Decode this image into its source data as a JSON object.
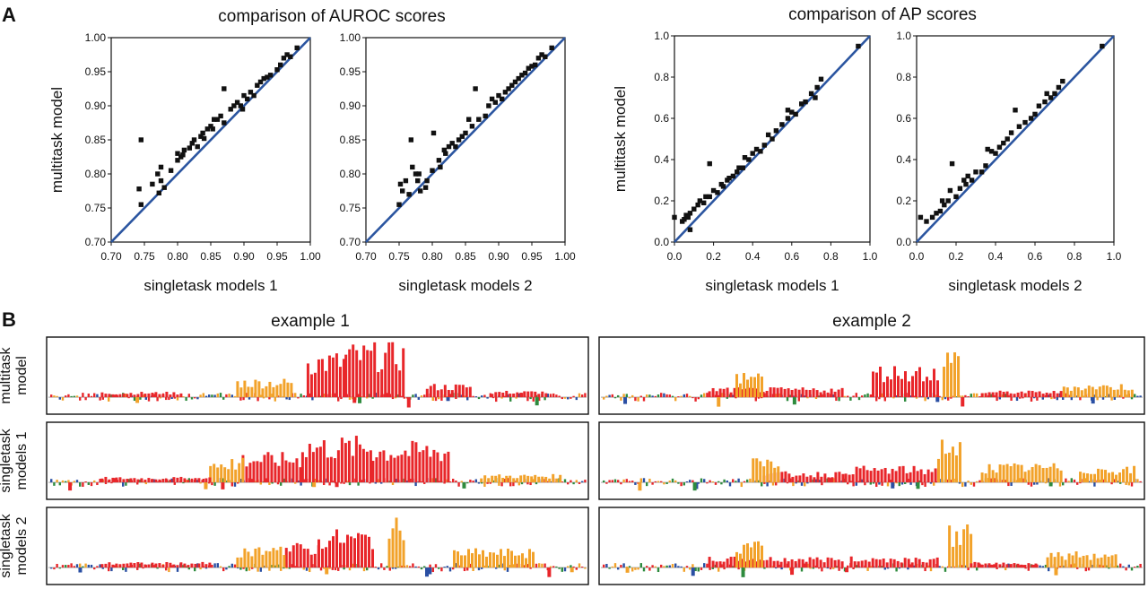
{
  "panel_labels": {
    "a": "A",
    "b": "B"
  },
  "group_titles": {
    "auroc": "comparison of AUROC scores",
    "ap": "comparison of AP scores"
  },
  "colors": {
    "diagonal": "#2b55a0",
    "points": "#111111",
    "logo_A": "#e8262a",
    "logo_C": "#2a4fa3",
    "logo_G": "#f2a22a",
    "logo_T": "#2e8b3e"
  },
  "chart_data": [
    {
      "type": "scatter",
      "title": "",
      "xlabel": "singletask models 1",
      "ylabel": "multitask model",
      "xlim": [
        0.7,
        1.0
      ],
      "ylim": [
        0.7,
        1.0
      ],
      "ticks": [
        "0.70",
        "0.75",
        "0.80",
        "0.85",
        "0.90",
        "0.95",
        "1.00"
      ],
      "diagonal": true,
      "points": [
        [
          0.745,
          0.85
        ],
        [
          0.742,
          0.778
        ],
        [
          0.745,
          0.755
        ],
        [
          0.762,
          0.785
        ],
        [
          0.775,
          0.81
        ],
        [
          0.77,
          0.8
        ],
        [
          0.775,
          0.79
        ],
        [
          0.78,
          0.78
        ],
        [
          0.772,
          0.772
        ],
        [
          0.79,
          0.805
        ],
        [
          0.8,
          0.82
        ],
        [
          0.805,
          0.825
        ],
        [
          0.8,
          0.83
        ],
        [
          0.81,
          0.835
        ],
        [
          0.808,
          0.828
        ],
        [
          0.818,
          0.838
        ],
        [
          0.822,
          0.845
        ],
        [
          0.825,
          0.85
        ],
        [
          0.83,
          0.84
        ],
        [
          0.835,
          0.855
        ],
        [
          0.838,
          0.86
        ],
        [
          0.84,
          0.852
        ],
        [
          0.845,
          0.866
        ],
        [
          0.85,
          0.87
        ],
        [
          0.853,
          0.866
        ],
        [
          0.855,
          0.88
        ],
        [
          0.86,
          0.88
        ],
        [
          0.865,
          0.885
        ],
        [
          0.87,
          0.925
        ],
        [
          0.87,
          0.875
        ],
        [
          0.88,
          0.895
        ],
        [
          0.885,
          0.9
        ],
        [
          0.89,
          0.905
        ],
        [
          0.895,
          0.9
        ],
        [
          0.898,
          0.895
        ],
        [
          0.9,
          0.915
        ],
        [
          0.905,
          0.91
        ],
        [
          0.91,
          0.92
        ],
        [
          0.915,
          0.915
        ],
        [
          0.92,
          0.93
        ],
        [
          0.925,
          0.935
        ],
        [
          0.93,
          0.94
        ],
        [
          0.935,
          0.942
        ],
        [
          0.94,
          0.945
        ],
        [
          0.95,
          0.953
        ],
        [
          0.955,
          0.96
        ],
        [
          0.96,
          0.97
        ],
        [
          0.965,
          0.975
        ],
        [
          0.97,
          0.972
        ],
        [
          0.98,
          0.985
        ]
      ]
    },
    {
      "type": "scatter",
      "title": "",
      "xlabel": "singletask models 2",
      "ylabel": "",
      "xlim": [
        0.7,
        1.0
      ],
      "ylim": [
        0.7,
        1.0
      ],
      "ticks": [
        "0.70",
        "0.75",
        "0.80",
        "0.85",
        "0.90",
        "0.95",
        "1.00"
      ],
      "diagonal": true,
      "points": [
        [
          0.75,
          0.755
        ],
        [
          0.752,
          0.785
        ],
        [
          0.755,
          0.775
        ],
        [
          0.76,
          0.79
        ],
        [
          0.765,
          0.77
        ],
        [
          0.768,
          0.85
        ],
        [
          0.77,
          0.81
        ],
        [
          0.775,
          0.8
        ],
        [
          0.778,
          0.79
        ],
        [
          0.78,
          0.8
        ],
        [
          0.782,
          0.775
        ],
        [
          0.79,
          0.78
        ],
        [
          0.792,
          0.79
        ],
        [
          0.8,
          0.805
        ],
        [
          0.802,
          0.86
        ],
        [
          0.81,
          0.82
        ],
        [
          0.812,
          0.81
        ],
        [
          0.818,
          0.835
        ],
        [
          0.82,
          0.83
        ],
        [
          0.825,
          0.84
        ],
        [
          0.83,
          0.845
        ],
        [
          0.835,
          0.84
        ],
        [
          0.84,
          0.85
        ],
        [
          0.845,
          0.855
        ],
        [
          0.85,
          0.86
        ],
        [
          0.855,
          0.88
        ],
        [
          0.86,
          0.87
        ],
        [
          0.865,
          0.925
        ],
        [
          0.87,
          0.88
        ],
        [
          0.88,
          0.885
        ],
        [
          0.885,
          0.9
        ],
        [
          0.89,
          0.91
        ],
        [
          0.895,
          0.905
        ],
        [
          0.9,
          0.915
        ],
        [
          0.905,
          0.91
        ],
        [
          0.91,
          0.92
        ],
        [
          0.915,
          0.925
        ],
        [
          0.92,
          0.93
        ],
        [
          0.925,
          0.935
        ],
        [
          0.93,
          0.94
        ],
        [
          0.935,
          0.945
        ],
        [
          0.94,
          0.948
        ],
        [
          0.945,
          0.955
        ],
        [
          0.95,
          0.958
        ],
        [
          0.955,
          0.96
        ],
        [
          0.96,
          0.97
        ],
        [
          0.965,
          0.975
        ],
        [
          0.97,
          0.972
        ],
        [
          0.98,
          0.985
        ]
      ]
    },
    {
      "type": "scatter",
      "title": "",
      "xlabel": "singletask models 1",
      "ylabel": "multitask model",
      "xlim": [
        0.0,
        1.0
      ],
      "ylim": [
        0.0,
        1.0
      ],
      "ticks": [
        "0.0",
        "0.2",
        "0.4",
        "0.6",
        "0.8",
        "1.0"
      ],
      "diagonal": true,
      "points": [
        [
          0.0,
          0.12
        ],
        [
          0.04,
          0.1
        ],
        [
          0.05,
          0.11
        ],
        [
          0.06,
          0.13
        ],
        [
          0.07,
          0.12
        ],
        [
          0.08,
          0.14
        ],
        [
          0.08,
          0.06
        ],
        [
          0.1,
          0.16
        ],
        [
          0.12,
          0.18
        ],
        [
          0.13,
          0.2
        ],
        [
          0.15,
          0.19
        ],
        [
          0.16,
          0.22
        ],
        [
          0.18,
          0.22
        ],
        [
          0.18,
          0.38
        ],
        [
          0.2,
          0.25
        ],
        [
          0.22,
          0.24
        ],
        [
          0.24,
          0.28
        ],
        [
          0.25,
          0.27
        ],
        [
          0.27,
          0.3
        ],
        [
          0.28,
          0.31
        ],
        [
          0.3,
          0.32
        ],
        [
          0.32,
          0.34
        ],
        [
          0.33,
          0.36
        ],
        [
          0.35,
          0.36
        ],
        [
          0.36,
          0.41
        ],
        [
          0.38,
          0.4
        ],
        [
          0.4,
          0.43
        ],
        [
          0.42,
          0.45
        ],
        [
          0.44,
          0.44
        ],
        [
          0.46,
          0.47
        ],
        [
          0.48,
          0.52
        ],
        [
          0.5,
          0.5
        ],
        [
          0.52,
          0.54
        ],
        [
          0.55,
          0.57
        ],
        [
          0.58,
          0.6
        ],
        [
          0.58,
          0.64
        ],
        [
          0.6,
          0.63
        ],
        [
          0.62,
          0.62
        ],
        [
          0.65,
          0.67
        ],
        [
          0.67,
          0.68
        ],
        [
          0.7,
          0.72
        ],
        [
          0.72,
          0.7
        ],
        [
          0.73,
          0.75
        ],
        [
          0.75,
          0.79
        ],
        [
          0.94,
          0.95
        ]
      ]
    },
    {
      "type": "scatter",
      "title": "",
      "xlabel": "singletask models 2",
      "ylabel": "",
      "xlim": [
        0.0,
        1.0
      ],
      "ylim": [
        0.0,
        1.0
      ],
      "ticks": [
        "0.0",
        "0.2",
        "0.4",
        "0.6",
        "0.8",
        "1.0"
      ],
      "diagonal": true,
      "points": [
        [
          0.02,
          0.12
        ],
        [
          0.05,
          0.1
        ],
        [
          0.08,
          0.12
        ],
        [
          0.1,
          0.14
        ],
        [
          0.12,
          0.15
        ],
        [
          0.13,
          0.2
        ],
        [
          0.14,
          0.18
        ],
        [
          0.16,
          0.2
        ],
        [
          0.17,
          0.25
        ],
        [
          0.18,
          0.38
        ],
        [
          0.2,
          0.22
        ],
        [
          0.22,
          0.26
        ],
        [
          0.24,
          0.3
        ],
        [
          0.25,
          0.28
        ],
        [
          0.26,
          0.32
        ],
        [
          0.28,
          0.3
        ],
        [
          0.3,
          0.34
        ],
        [
          0.33,
          0.34
        ],
        [
          0.35,
          0.37
        ],
        [
          0.36,
          0.45
        ],
        [
          0.38,
          0.44
        ],
        [
          0.4,
          0.43
        ],
        [
          0.42,
          0.46
        ],
        [
          0.44,
          0.48
        ],
        [
          0.46,
          0.5
        ],
        [
          0.48,
          0.53
        ],
        [
          0.5,
          0.64
        ],
        [
          0.52,
          0.56
        ],
        [
          0.55,
          0.58
        ],
        [
          0.58,
          0.6
        ],
        [
          0.6,
          0.62
        ],
        [
          0.62,
          0.66
        ],
        [
          0.65,
          0.68
        ],
        [
          0.66,
          0.72
        ],
        [
          0.68,
          0.7
        ],
        [
          0.7,
          0.72
        ],
        [
          0.72,
          0.75
        ],
        [
          0.74,
          0.78
        ],
        [
          0.94,
          0.95
        ]
      ]
    }
  ],
  "logos": {
    "examples": [
      "example 1",
      "example 2"
    ],
    "rows": [
      "multitask\nmodel",
      "singletask\nmodels 1",
      "singletask\nmodels 2"
    ]
  }
}
